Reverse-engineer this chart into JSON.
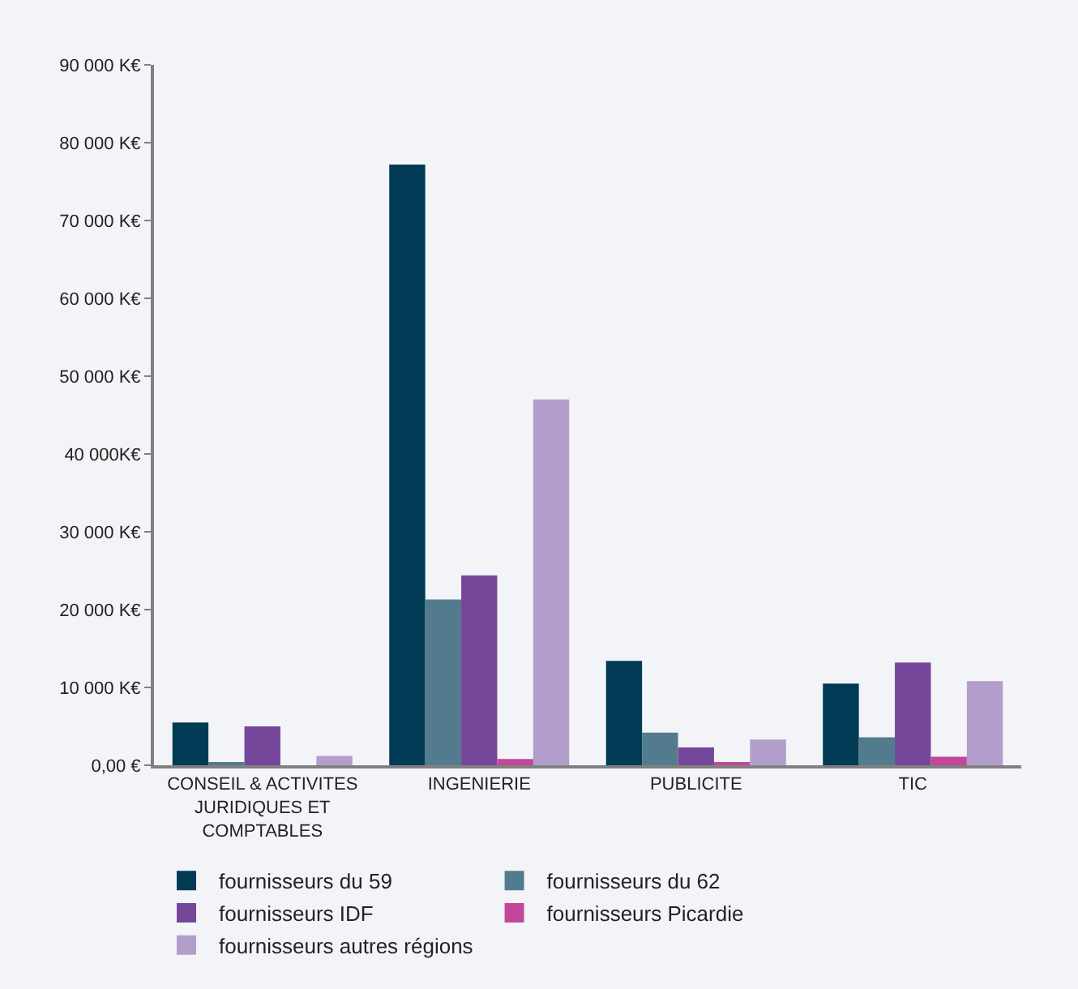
{
  "chart_data": {
    "type": "bar",
    "categories": [
      "CONSEIL & ACTIVITES JURIDIQUES ET COMPTABLES",
      "INGENIERIE",
      "PUBLICITE",
      "TIC"
    ],
    "series": [
      {
        "name": "fournisseurs du 59",
        "color": "#003a55",
        "values": [
          5500,
          77200,
          13400,
          10500
        ]
      },
      {
        "name": "fournisseurs du 62",
        "color": "#527c8e",
        "values": [
          300,
          21300,
          4200,
          3600
        ]
      },
      {
        "name": "fournisseurs IDF",
        "color": "#75479a",
        "values": [
          5000,
          24400,
          2300,
          13200
        ]
      },
      {
        "name": "fournisseurs Picardie",
        "color": "#c2479a",
        "values": [
          0,
          800,
          300,
          1100
        ]
      },
      {
        "name": "fournisseurs autres régions",
        "color": "#b39dca",
        "values": [
          1200,
          47000,
          3300,
          10800
        ]
      }
    ],
    "ylim": [
      0,
      90000
    ],
    "yticks": [
      {
        "value": 0,
        "label": "0,00 €"
      },
      {
        "value": 10000,
        "label": "10 000 K€"
      },
      {
        "value": 20000,
        "label": "20 000 K€"
      },
      {
        "value": 30000,
        "label": "30 000 K€"
      },
      {
        "value": 40000,
        "label": "40 000K€"
      },
      {
        "value": 50000,
        "label": "50 000 K€"
      },
      {
        "value": 60000,
        "label": "60 000 K€"
      },
      {
        "value": 70000,
        "label": "70 000 K€"
      },
      {
        "value": 80000,
        "label": "80 000 K€"
      },
      {
        "value": 90000,
        "label": "90 000 K€"
      }
    ],
    "grid": false,
    "legend": "bottom"
  }
}
